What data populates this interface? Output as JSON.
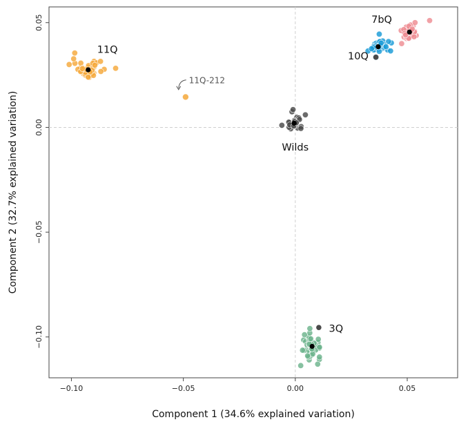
{
  "chart_data": {
    "type": "scatter",
    "xlabel": "Component 1 (34.6% explained variation)",
    "ylabel": "Component 2 (32.7% explained variation)",
    "xlim": [
      -0.11,
      0.0725
    ],
    "ylim": [
      -0.1195,
      0.0575
    ],
    "x_ticks": [
      -0.1,
      -0.05,
      0.0,
      0.05
    ],
    "x_tick_labels": [
      "−0.10",
      "−0.05",
      "0.00",
      "0.05"
    ],
    "y_ticks": [
      0.05,
      0.0,
      -0.05,
      -0.1
    ],
    "y_tick_labels": [
      "0.05",
      "0.00",
      "−0.05",
      "−0.10"
    ],
    "reference_lines": {
      "x": 0.0,
      "y": 0.0,
      "style": "dashed"
    },
    "series": [
      {
        "label": "11Q",
        "color": "#F5A83A",
        "centroid": [
          -0.0925,
          0.0275
        ],
        "spread": [
          0.0042,
          0.0024
        ],
        "n": 55,
        "extras": [
          [
            -0.0985,
            0.0355
          ],
          [
            -0.101,
            0.03
          ],
          [
            -0.0925,
            0.024
          ]
        ]
      },
      {
        "label": "Wilds",
        "color": "#4A4A4A",
        "centroid": [
          -0.0005,
          0.002
        ],
        "spread": [
          0.0025,
          0.0022
        ],
        "n": 22,
        "extras": [
          [
            -0.006,
            0.001
          ],
          [
            0.0045,
            0.006
          ],
          [
            -0.001,
            0.0085
          ],
          [
            0.0025,
            -0.0005
          ]
        ]
      },
      {
        "label": "10Q",
        "color": "#1A9BD7",
        "centroid": [
          0.037,
          0.0385
        ],
        "spread": [
          0.0032,
          0.0018
        ],
        "n": 50,
        "extras": [
          [
            0.0375,
            0.0445
          ],
          [
            0.0405,
            0.0385
          ],
          [
            0.036,
            0.0335
          ]
        ]
      },
      {
        "label": "7bQ",
        "color": "#EE8C93",
        "centroid": [
          0.051,
          0.0455
        ],
        "spread": [
          0.0022,
          0.0025
        ],
        "n": 42,
        "extras": [
          [
            0.06,
            0.051
          ],
          [
            0.0475,
            0.04
          ],
          [
            0.0535,
            0.05
          ]
        ]
      },
      {
        "label": "3Q",
        "color": "#6DB38C",
        "centroid": [
          0.0075,
          -0.1045
        ],
        "spread": [
          0.0025,
          0.0035
        ],
        "n": 50,
        "extras": [
          [
            0.0065,
            -0.096
          ],
          [
            0.01,
            -0.113
          ],
          [
            0.0055,
            -0.109
          ]
        ]
      }
    ],
    "series_centroid_color": "#000000",
    "special_points": [
      {
        "color": "#4A4A4A",
        "points": [
          [
            0.036,
            0.0335
          ],
          [
            0.0105,
            -0.0955
          ]
        ]
      }
    ],
    "annotations": [
      {
        "text": "11Q",
        "x": -0.0885,
        "y": 0.0355
      },
      {
        "text": "Wilds",
        "x": -0.006,
        "y": -0.011
      },
      {
        "text": "10Q",
        "x": 0.0235,
        "y": 0.0325
      },
      {
        "text": "7bQ",
        "x": 0.034,
        "y": 0.05
      },
      {
        "text": "3Q",
        "x": 0.015,
        "y": -0.0975
      }
    ],
    "outlier": {
      "label": "11Q-212",
      "x": -0.049,
      "y": 0.0145,
      "color": "#F5A83A",
      "label_pos": [
        -0.0475,
        0.021
      ]
    }
  }
}
